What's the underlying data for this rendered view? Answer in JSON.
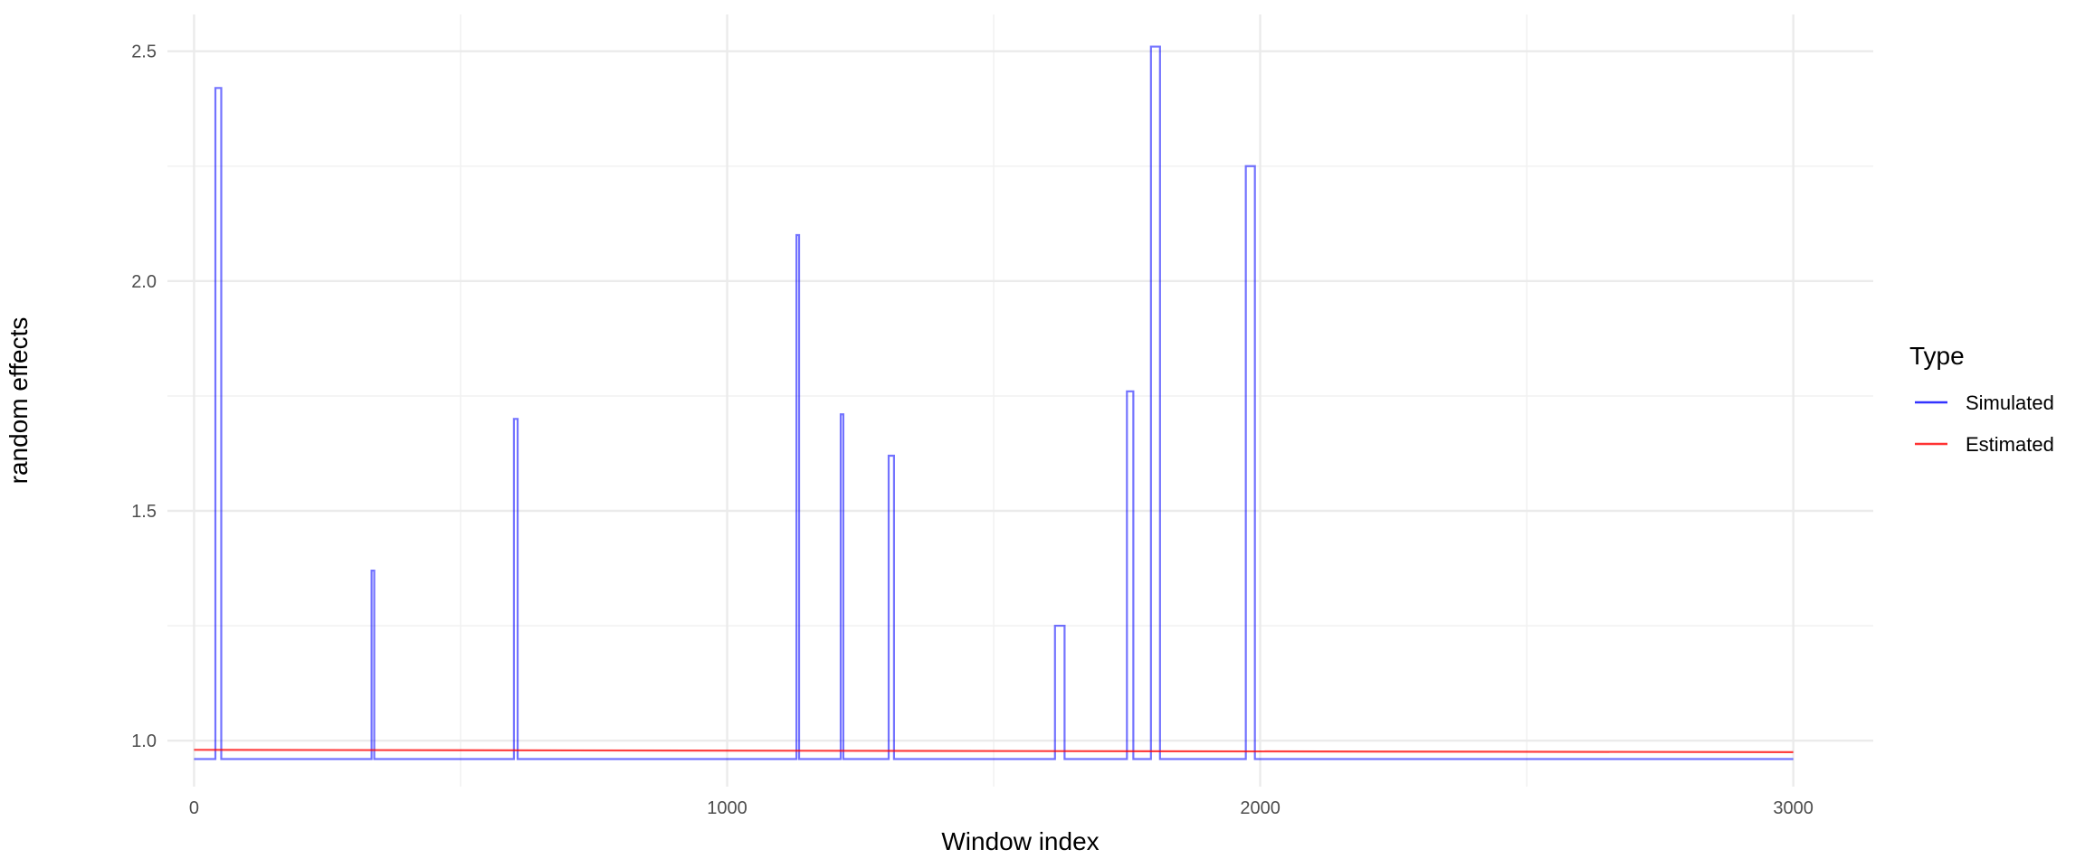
{
  "chart_data": {
    "type": "line",
    "xlabel": "Window index",
    "ylabel": "random effects",
    "xlim": [
      -50,
      3150
    ],
    "ylim": [
      0.9,
      2.58
    ],
    "x_ticks": [
      0,
      1000,
      2000,
      3000
    ],
    "x_tick_labels": [
      "0",
      "1000",
      "2000",
      "3000"
    ],
    "x_minor_ticks": [
      500,
      1500,
      2500
    ],
    "y_ticks": [
      1.0,
      1.5,
      2.0,
      2.5
    ],
    "y_tick_labels": [
      "1.0",
      "1.5",
      "2.0",
      "2.5"
    ],
    "y_minor_ticks": [
      1.25,
      1.75,
      2.25
    ],
    "grid": true,
    "legend": {
      "title": "Type",
      "position": "right",
      "entries": [
        {
          "label": "Simulated",
          "color": "#0000ff"
        },
        {
          "label": "Estimated",
          "color": "#ff0000"
        }
      ]
    },
    "series": [
      {
        "name": "Simulated",
        "color": "#0000ff",
        "x": [
          0,
          40,
          40,
          51,
          51,
          333,
          333,
          338,
          338,
          600,
          600,
          607,
          607,
          1130,
          1130,
          1135,
          1135,
          1213,
          1213,
          1218,
          1218,
          1303,
          1303,
          1313,
          1313,
          1615,
          1615,
          1633,
          1633,
          1750,
          1750,
          1762,
          1762,
          1795,
          1795,
          1812,
          1812,
          1973,
          1973,
          1990,
          1990,
          3000
        ],
        "y": [
          0.96,
          0.96,
          2.42,
          2.42,
          0.96,
          0.96,
          1.37,
          1.37,
          0.96,
          0.96,
          1.7,
          1.7,
          0.96,
          0.96,
          2.1,
          2.1,
          0.96,
          0.96,
          1.71,
          1.71,
          0.96,
          0.96,
          1.62,
          1.62,
          0.96,
          0.96,
          1.25,
          1.25,
          0.96,
          0.96,
          1.76,
          1.76,
          0.96,
          0.96,
          2.51,
          2.51,
          0.96,
          0.96,
          2.25,
          2.25,
          0.96,
          0.96
        ]
      },
      {
        "name": "Estimated",
        "color": "#ff0000",
        "x": [
          0,
          3000
        ],
        "y": [
          0.98,
          0.975
        ]
      }
    ]
  }
}
